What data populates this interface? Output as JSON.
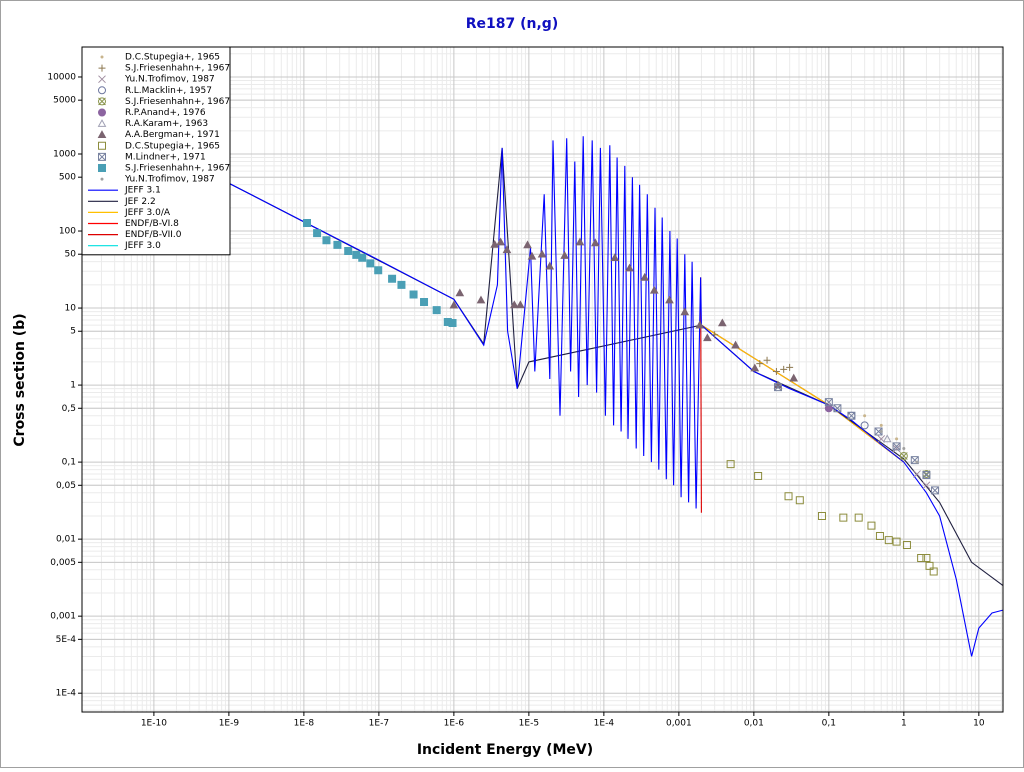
{
  "chart_data": {
    "type": "scatter",
    "title": "Re187 (n,g)",
    "x_label": "Incident Energy (MeV)",
    "y_label": "Cross section (b)",
    "x_log": true,
    "y_log": true,
    "grid": true,
    "minor_grid": true,
    "legend": "upper left",
    "xlim": [
      1.1e-11,
      21
    ],
    "ylim": [
      5.7e-05,
      24500
    ],
    "xticks": [
      {
        "value": 1e-10,
        "label": "1E-10"
      },
      {
        "value": 1e-09,
        "label": "1E-9"
      },
      {
        "value": 1e-08,
        "label": "1E-8"
      },
      {
        "value": 1e-07,
        "label": "1E-7"
      },
      {
        "value": 1e-06,
        "label": "1E-6"
      },
      {
        "value": 1e-05,
        "label": "1E-5"
      },
      {
        "value": 0.0001,
        "label": "1E-4"
      },
      {
        "value": 0.001,
        "label": "0,001"
      },
      {
        "value": 0.01,
        "label": "0,01"
      },
      {
        "value": 0.1,
        "label": "0,1"
      },
      1,
      10
    ],
    "yticks": [
      {
        "value": 0.0001,
        "label": "1E-4"
      },
      {
        "value": 0.0005,
        "label": "5E-4"
      },
      {
        "value": 0.001,
        "label": "0,001"
      },
      {
        "value": 0.005,
        "label": "0,005"
      },
      {
        "value": 0.01,
        "label": "0,01"
      },
      {
        "value": 0.05,
        "label": "0,05"
      },
      {
        "value": 0.1,
        "label": "0,1"
      },
      {
        "value": 0.5,
        "label": "0,5"
      },
      1,
      5,
      10,
      50,
      100,
      500,
      1000,
      5000,
      10000
    ],
    "series": [
      {
        "name": "D.C.Stupegia+, 1965",
        "color": "#c8b48c",
        "marker": "dot",
        "x": [
          0.3,
          0.5,
          0.8
        ],
        "y": [
          0.4,
          0.3,
          0.2
        ]
      },
      {
        "name": "S.J.Friesenhahn+, 1967",
        "color": "#8c7850",
        "marker": "plus",
        "x": [
          0.003,
          0.012,
          0.015,
          0.02,
          0.025,
          0.03
        ],
        "y": [
          4.5,
          1.9,
          2.1,
          1.5,
          1.6,
          1.7
        ]
      },
      {
        "name": "Yu.N.Trofimov, 1987",
        "color": "#a08ca0",
        "marker": "cross",
        "x": [
          0.5,
          0.8,
          1.5,
          2
        ],
        "y": [
          0.2,
          0.15,
          0.07,
          0.05
        ]
      },
      {
        "name": "R.L.Macklin+, 1957",
        "color": "#6e78a0",
        "marker": "circle",
        "x": [
          0.2,
          0.3
        ],
        "y": [
          0.4,
          0.3
        ]
      },
      {
        "name": "S.J.Friesenhahn+, 1967",
        "color": "#8c9650",
        "marker": "circle-x",
        "x": [
          1,
          2
        ],
        "y": [
          0.12,
          0.07
        ]
      },
      {
        "name": "R.P.Anand+, 1976",
        "color": "#8c64a0",
        "marker": "disc",
        "x": [
          0.1
        ],
        "y": [
          0.5
        ]
      },
      {
        "name": "R.A.Karam+, 1963",
        "color": "#a0a0b4",
        "marker": "triangle-open",
        "x": [
          0.6
        ],
        "y": [
          0.2
        ]
      },
      {
        "name": "A.A.Bergman+, 1971",
        "color": "#7b6470",
        "marker": "triangle",
        "x": [
          1e-06,
          1.2e-06,
          2.3e-06,
          3.5e-06,
          4.2e-06,
          5.1e-06,
          6.4e-06,
          7.7e-06,
          9.6e-06,
          1.1e-05,
          1.5e-05,
          1.9e-05,
          3e-05,
          4.8e-05,
          7.7e-05,
          0.00014,
          0.00022,
          0.00035,
          0.00047,
          0.00075,
          0.0012,
          0.0019,
          0.0024,
          0.0038,
          0.0057,
          0.0103,
          0.021,
          0.034
        ],
        "y": [
          10.9,
          15.7,
          12.7,
          67,
          72,
          57,
          11,
          11,
          66,
          47,
          50,
          35,
          48,
          72,
          70,
          45,
          33,
          25,
          17,
          12.7,
          8.9,
          6,
          4.1,
          6.4,
          3.3,
          1.66,
          1.0,
          1.23
        ]
      },
      {
        "name": "D.C.Stupegia+, 1965",
        "color": "#8c8c3c",
        "marker": "square-open",
        "x": [
          0.0049,
          0.0114,
          0.029,
          0.041,
          0.081,
          0.156,
          0.25,
          0.37,
          0.48,
          0.63,
          0.8,
          1.1,
          1.7,
          2.0,
          2.2,
          2.5
        ],
        "y": [
          0.094,
          0.066,
          0.036,
          0.032,
          0.02,
          0.019,
          0.019,
          0.015,
          0.011,
          0.0097,
          0.0093,
          0.0084,
          0.0057,
          0.0057,
          0.0045,
          0.0038
        ]
      },
      {
        "name": "M.Lindner+, 1971",
        "color": "#7882a0",
        "marker": "square-x",
        "x": [
          0.021,
          0.1,
          0.13,
          0.2,
          0.46,
          0.8,
          1.4,
          2.0,
          2.6
        ],
        "y": [
          0.94,
          0.6,
          0.5,
          0.4,
          0.25,
          0.16,
          0.106,
          0.068,
          0.043
        ]
      },
      {
        "name": "S.J.Friesenhahn+, 1967",
        "color": "#4a9fb5",
        "marker": "square",
        "x": [
          1.1e-08,
          1.5e-08,
          2e-08,
          2.8e-08,
          3.9e-08,
          5e-08,
          6e-08,
          7.7e-08,
          9.8e-08,
          1.5e-07,
          2e-07,
          2.9e-07,
          4e-07,
          5.9e-07,
          8.3e-07,
          9.6e-07
        ],
        "y": [
          127,
          94,
          76,
          66,
          55,
          49,
          45,
          38,
          31,
          24,
          20,
          15,
          12,
          9.4,
          6.6,
          6.4
        ]
      },
      {
        "name": "Yu.N.Trofimov, 1987",
        "color": "#a0a0a0",
        "marker": "dot",
        "x": [
          0.5,
          1,
          1.5
        ],
        "y": [
          0.25,
          0.15,
          0.1
        ]
      },
      {
        "name": "JEFF 3.1",
        "color": "#0000ff",
        "marker": "line",
        "x": [
          1e-11,
          1e-09,
          1e-08,
          1e-07,
          1e-06,
          2.5e-06,
          3.8e-06,
          4.4e-06,
          5.2e-06,
          7e-06,
          1.05e-05,
          1.2e-05,
          1.6e-05,
          1.9e-05,
          2.1e-05,
          2.6e-05,
          3.2e-05,
          3.6e-05,
          4.1e-05,
          4.6e-05,
          5.3e-05,
          6e-05,
          7e-05,
          8e-05,
          9e-05,
          0.000105,
          0.00012,
          0.000135,
          0.00015,
          0.00017,
          0.00019,
          0.00021,
          0.00024,
          0.00027,
          0.0003,
          0.00034,
          0.00038,
          0.00043,
          0.00048,
          0.00054,
          0.0006,
          0.00068,
          0.00076,
          0.00085,
          0.00095,
          0.00107,
          0.0012,
          0.00135,
          0.0015,
          0.0017,
          0.00195,
          0.002,
          0.01,
          0.03,
          0.1,
          0.2,
          0.5,
          1,
          2,
          3,
          5,
          8,
          10,
          15,
          21
        ],
        "y": [
          4180,
          418,
          132,
          42,
          13,
          3.3,
          20,
          1200,
          5,
          0.9,
          60,
          1.5,
          300,
          1.2,
          1500,
          0.4,
          1600,
          1.5,
          800,
          0.7,
          1700,
          1,
          1500,
          0.8,
          1200,
          0.4,
          1300,
          0.3,
          900,
          0.25,
          700,
          0.2,
          500,
          0.15,
          400,
          0.12,
          300,
          0.1,
          200,
          0.08,
          150,
          0.06,
          100,
          0.05,
          80,
          0.035,
          50,
          0.03,
          40,
          0.025,
          25,
          6,
          1.5,
          0.9,
          0.55,
          0.35,
          0.17,
          0.1,
          0.04,
          0.02,
          0.003,
          0.0003,
          0.0007,
          0.0011,
          0.0012
        ]
      },
      {
        "name": "JEF 2.2",
        "color": "#202040",
        "marker": "line",
        "x": [
          1e-11,
          1e-09,
          1e-06,
          2.5e-06,
          4.4e-06,
          7e-06,
          1e-05,
          0.002,
          0.01,
          0.1,
          1,
          3,
          8,
          21
        ],
        "y": [
          4180,
          418,
          13,
          3.4,
          1200,
          0.9,
          2,
          6,
          1.5,
          0.55,
          0.11,
          0.03,
          0.005,
          0.0025
        ]
      },
      {
        "name": "JEFF 3.0/A",
        "color": "#ffc000",
        "marker": "line",
        "x": [
          0.002,
          0.1,
          1
        ],
        "y": [
          6,
          0.55,
          0.1
        ]
      },
      {
        "name": "ENDF/B-VI.8",
        "color": "#ff0000",
        "marker": "line",
        "x": [
          0.002,
          0.1,
          1
        ],
        "y": [
          6,
          0.55,
          0.1
        ]
      },
      {
        "name": "ENDF/B-VII.0",
        "color": "#dd0000",
        "marker": "line",
        "x": [
          0.00195,
          0.002
        ],
        "y": [
          25,
          0.022
        ]
      },
      {
        "name": "JEFF 3.0",
        "color": "#00e0e0",
        "marker": "line",
        "x": [
          0.002,
          0.1,
          1
        ],
        "y": [
          6,
          0.55,
          0.1
        ]
      }
    ]
  }
}
